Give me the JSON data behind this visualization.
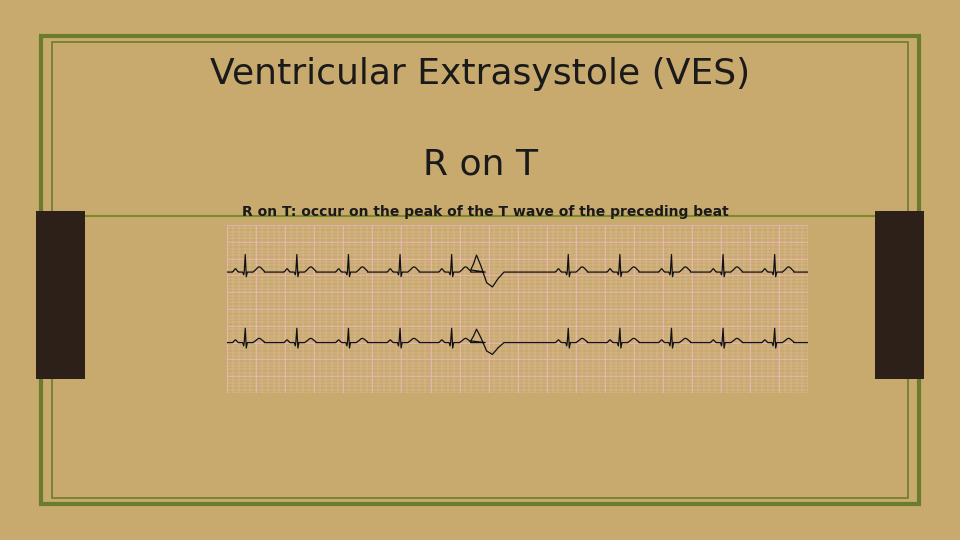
{
  "title_line1": "Ventricular Extrasystole (VES)",
  "title_line2": "R on T",
  "title_fontsize": 26,
  "title_color": "#1a1a1a",
  "slide_bg": "#f5f5f0",
  "outer_bg": "#c8a96e",
  "border_outer_color": "#6b7c2d",
  "border_inner_color": "#8b9a3a",
  "side_block_color": "#2d2018",
  "bullet_text": "R on T: occur on the peak of the T wave of the preceding beat",
  "bullet_bg": "#9b5fcc",
  "bullet_text_color": "#1a1a1a",
  "bullet_fontsize": 10,
  "hline_color": "#7a8c2a",
  "ecg_bg": "#fce8e8",
  "ecg_grid_major": "#e8b0b0",
  "ecg_grid_minor": "#f5d0d0",
  "ecg_line_color": "#111111",
  "ecg_box_border": "#444444"
}
